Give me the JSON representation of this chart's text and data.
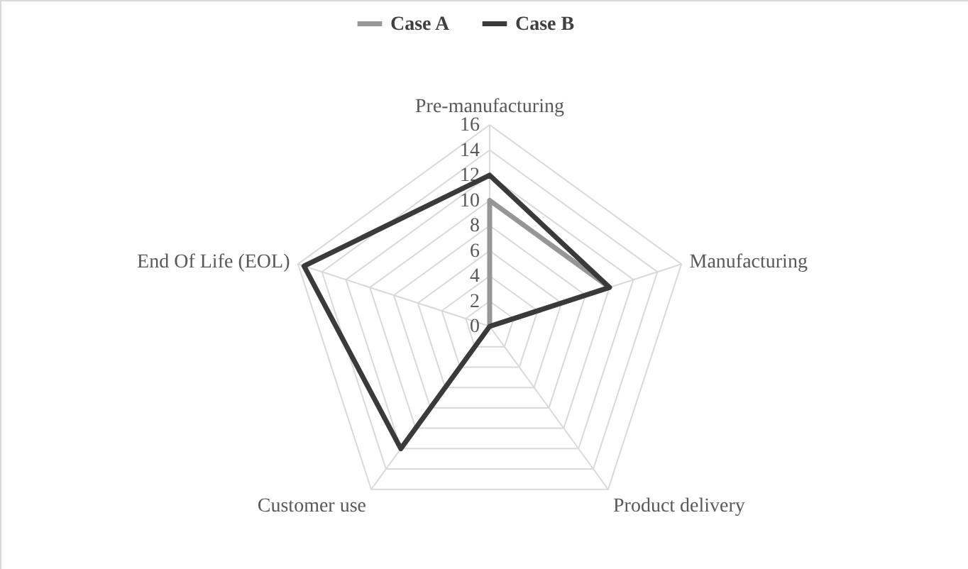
{
  "chart_data": {
    "type": "radar",
    "categories": [
      "Pre-manufacturing",
      "Manufacturing",
      "Product delivery",
      "Customer use",
      "End Of Life (EOL)"
    ],
    "series": [
      {
        "name": "Case A",
        "color": "#969696",
        "values": [
          10,
          10,
          0,
          0,
          0
        ]
      },
      {
        "name": "Case B",
        "color": "#3a3a3a",
        "values": [
          12,
          10,
          0,
          12,
          15.5
        ]
      }
    ],
    "ylim": [
      0,
      16
    ],
    "yticks": [
      0,
      2,
      4,
      6,
      8,
      10,
      12,
      14,
      16
    ],
    "grid": true,
    "legend": "top"
  }
}
